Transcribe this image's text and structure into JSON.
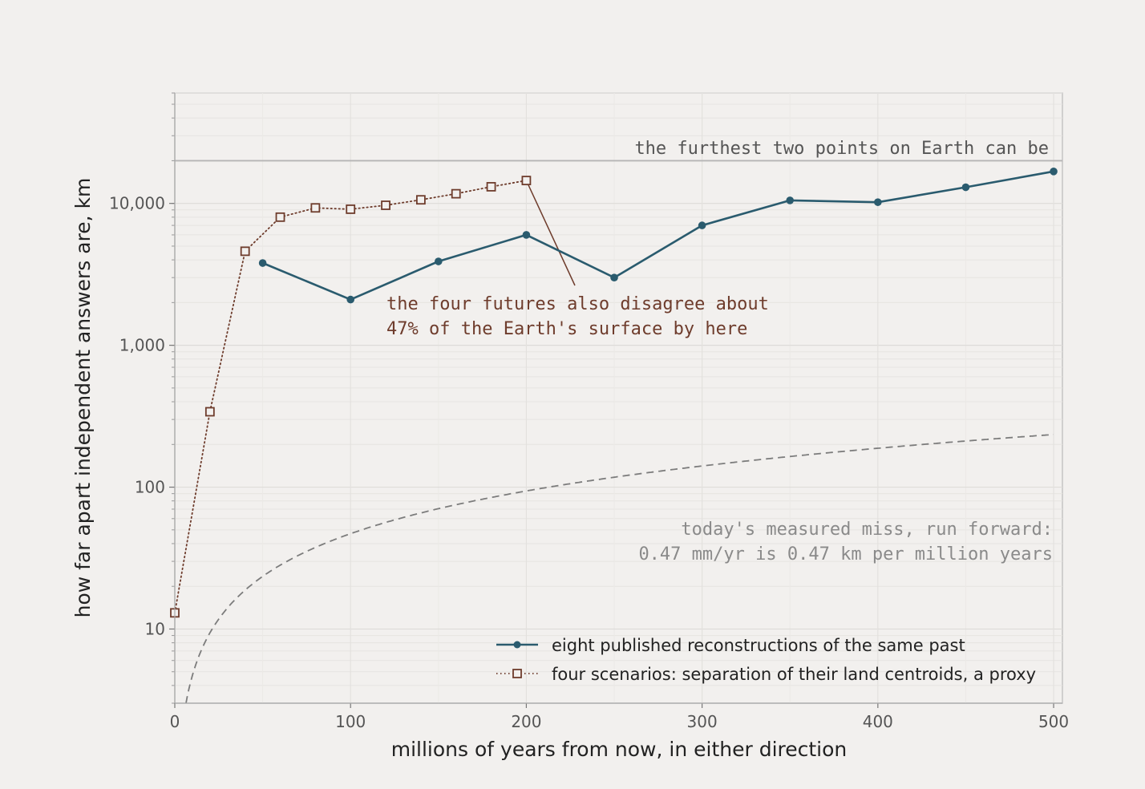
{
  "chart_data": {
    "type": "line",
    "xlabel": "millions of years from now, in either direction",
    "ylabel": "how far apart independent answers are, km",
    "xlim": [
      0,
      505
    ],
    "ylim": [
      3,
      60000
    ],
    "y_scale": "log",
    "grid": true,
    "x_ticks": [
      0,
      100,
      200,
      300,
      400,
      500
    ],
    "x_tick_labels": [
      "0",
      "100",
      "200",
      "300",
      "400",
      "500"
    ],
    "y_ticks": [
      10,
      100,
      1000,
      10000
    ],
    "y_tick_labels": [
      "10",
      "100",
      "1,000",
      "10,000"
    ],
    "legend_position": "bottom-right",
    "series": [
      {
        "name": "eight published reconstructions of the same past",
        "style": "solid-circle",
        "color": "#2a5b6e",
        "x": [
          50,
          100,
          150,
          200,
          250,
          300,
          350,
          400,
          450,
          500
        ],
        "values": [
          3800,
          2100,
          3900,
          6000,
          3000,
          7000,
          10500,
          10200,
          13000,
          16800
        ]
      },
      {
        "name": "four scenarios: separation of their land centroids, a proxy",
        "style": "dotted-square",
        "color": "#6e3c2c",
        "x": [
          0,
          20,
          40,
          60,
          80,
          100,
          120,
          140,
          160,
          180,
          200
        ],
        "values": [
          13,
          340,
          4600,
          8000,
          9300,
          9100,
          9700,
          10600,
          11700,
          13100,
          14500
        ]
      }
    ],
    "reference_lines": [
      {
        "label": "the furthest two points on Earth can be",
        "value": 20000,
        "color": "#b5b5b5"
      },
      {
        "label_lines": [
          "today's measured miss, run forward:",
          "0.47 mm/yr is 0.47 km per million years"
        ],
        "rate_km_per_myr": 0.47,
        "style": "dashed",
        "color": "#7c7c7c"
      }
    ],
    "annotations": [
      {
        "lines": [
          "the four futures also disagree about",
          "47% of the Earth's surface by here"
        ],
        "color": "#6e3c2c",
        "points_to": {
          "x": 200,
          "y": 14500
        }
      }
    ]
  }
}
